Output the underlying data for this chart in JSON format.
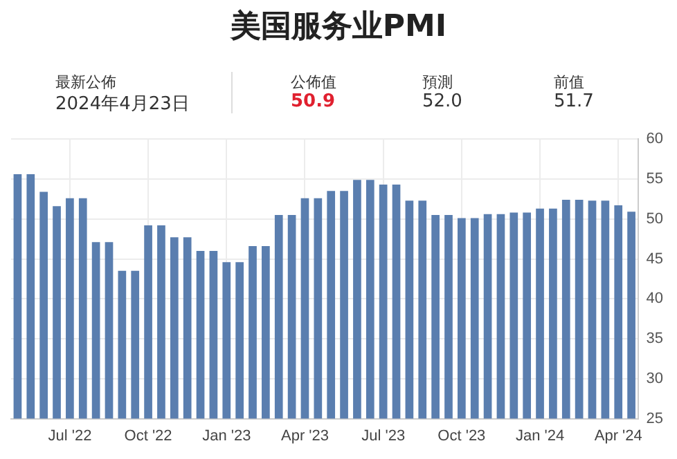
{
  "chart_data": {
    "type": "bar",
    "title": "美国服务业PMI",
    "annotations": [
      "最新公佈",
      "2024年4月23日",
      "公佈值",
      "50.9",
      "預測",
      "52.0",
      "前值",
      "51.7"
    ],
    "categories": [
      null,
      null,
      null,
      null,
      "Jul '22",
      null,
      null,
      null,
      null,
      null,
      "Oct '22",
      null,
      null,
      null,
      null,
      null,
      "Jan '23",
      null,
      null,
      null,
      null,
      null,
      "Apr '23",
      null,
      null,
      null,
      null,
      null,
      "Jul '23",
      null,
      null,
      null,
      null,
      null,
      "Oct '23",
      null,
      null,
      null,
      null,
      null,
      "Jan '24",
      null,
      null,
      null,
      null,
      null,
      "Apr '24",
      null
    ],
    "values": [
      55.6,
      55.6,
      53.4,
      51.6,
      52.6,
      52.6,
      47.1,
      47.1,
      43.5,
      43.5,
      49.2,
      49.2,
      47.7,
      47.7,
      46.0,
      46.0,
      44.6,
      44.6,
      46.6,
      46.6,
      50.5,
      50.5,
      52.6,
      52.6,
      53.5,
      53.5,
      54.9,
      54.9,
      54.3,
      54.3,
      52.3,
      52.3,
      50.5,
      50.5,
      50.1,
      50.1,
      50.6,
      50.6,
      50.8,
      50.8,
      51.3,
      51.3,
      52.4,
      52.4,
      52.3,
      52.3,
      51.7,
      50.9
    ],
    "color": "#5a7eaf",
    "ylim": [
      25,
      60
    ],
    "yticks": [
      25,
      30,
      35,
      40,
      45,
      50,
      55,
      60
    ],
    "grid": true,
    "legend": false
  }
}
